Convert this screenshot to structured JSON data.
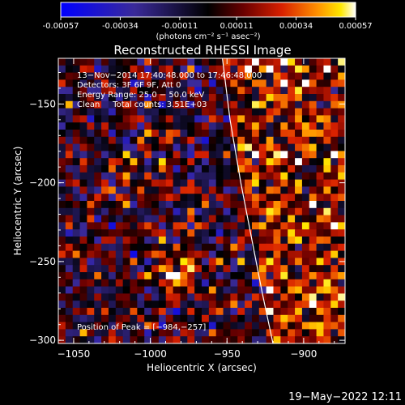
{
  "colorbar": {
    "ticks": [
      "-0.00057",
      "-0.00034",
      "-0.00011",
      "0.00011",
      "0.00034",
      "0.00057"
    ],
    "tick_values": [
      -0.00057,
      -0.00034,
      -0.00011,
      0.00011,
      0.00034,
      0.00057
    ],
    "range": [
      -0.00057,
      0.00057
    ],
    "unit_label": "(photons cm⁻² s⁻¹ asec⁻²)",
    "colors": [
      "#0000ff",
      "#3a2a9a",
      "#000000",
      "#6a0000",
      "#d82000",
      "#ff9000",
      "#ffe800",
      "#ffffff"
    ]
  },
  "chart_data": {
    "type": "heatmap",
    "title": "Reconstructed RHESSI Image",
    "xlabel": "Heliocentric X (arcsec)",
    "ylabel": "Heliocentric Y (arcsec)",
    "xlim": [
      -1060,
      -873
    ],
    "ylim": [
      -302,
      -121
    ],
    "x_ticks": [
      -1050,
      -1000,
      -950,
      -900
    ],
    "x_tick_labels": [
      "−1050",
      "−1000",
      "−950",
      "−900"
    ],
    "y_ticks": [
      -300,
      -250,
      -200,
      -150
    ],
    "y_tick_labels": [
      "−300",
      "−250",
      "−200",
      "−150"
    ],
    "info_lines": [
      "13−Nov−2014 17:40:48.000 to 17:46:48.000",
      "Detectors: 3F 6F 9F, Att 0",
      "Energy Range: 25.0 − 50.0 keV",
      "Clean     Total counts: 3.51E+03"
    ],
    "peak_label": "Position of Peak = [−984,−257]",
    "peak": [
      -984,
      -257
    ],
    "limb_points": [
      [
        -953,
        -121
      ],
      [
        -948,
        -160
      ],
      [
        -941,
        -200
      ],
      [
        -933,
        -240
      ],
      [
        -927,
        -270
      ],
      [
        -920,
        -302
      ]
    ]
  },
  "footer": {
    "timestamp": "19−May−2022 12:11"
  }
}
